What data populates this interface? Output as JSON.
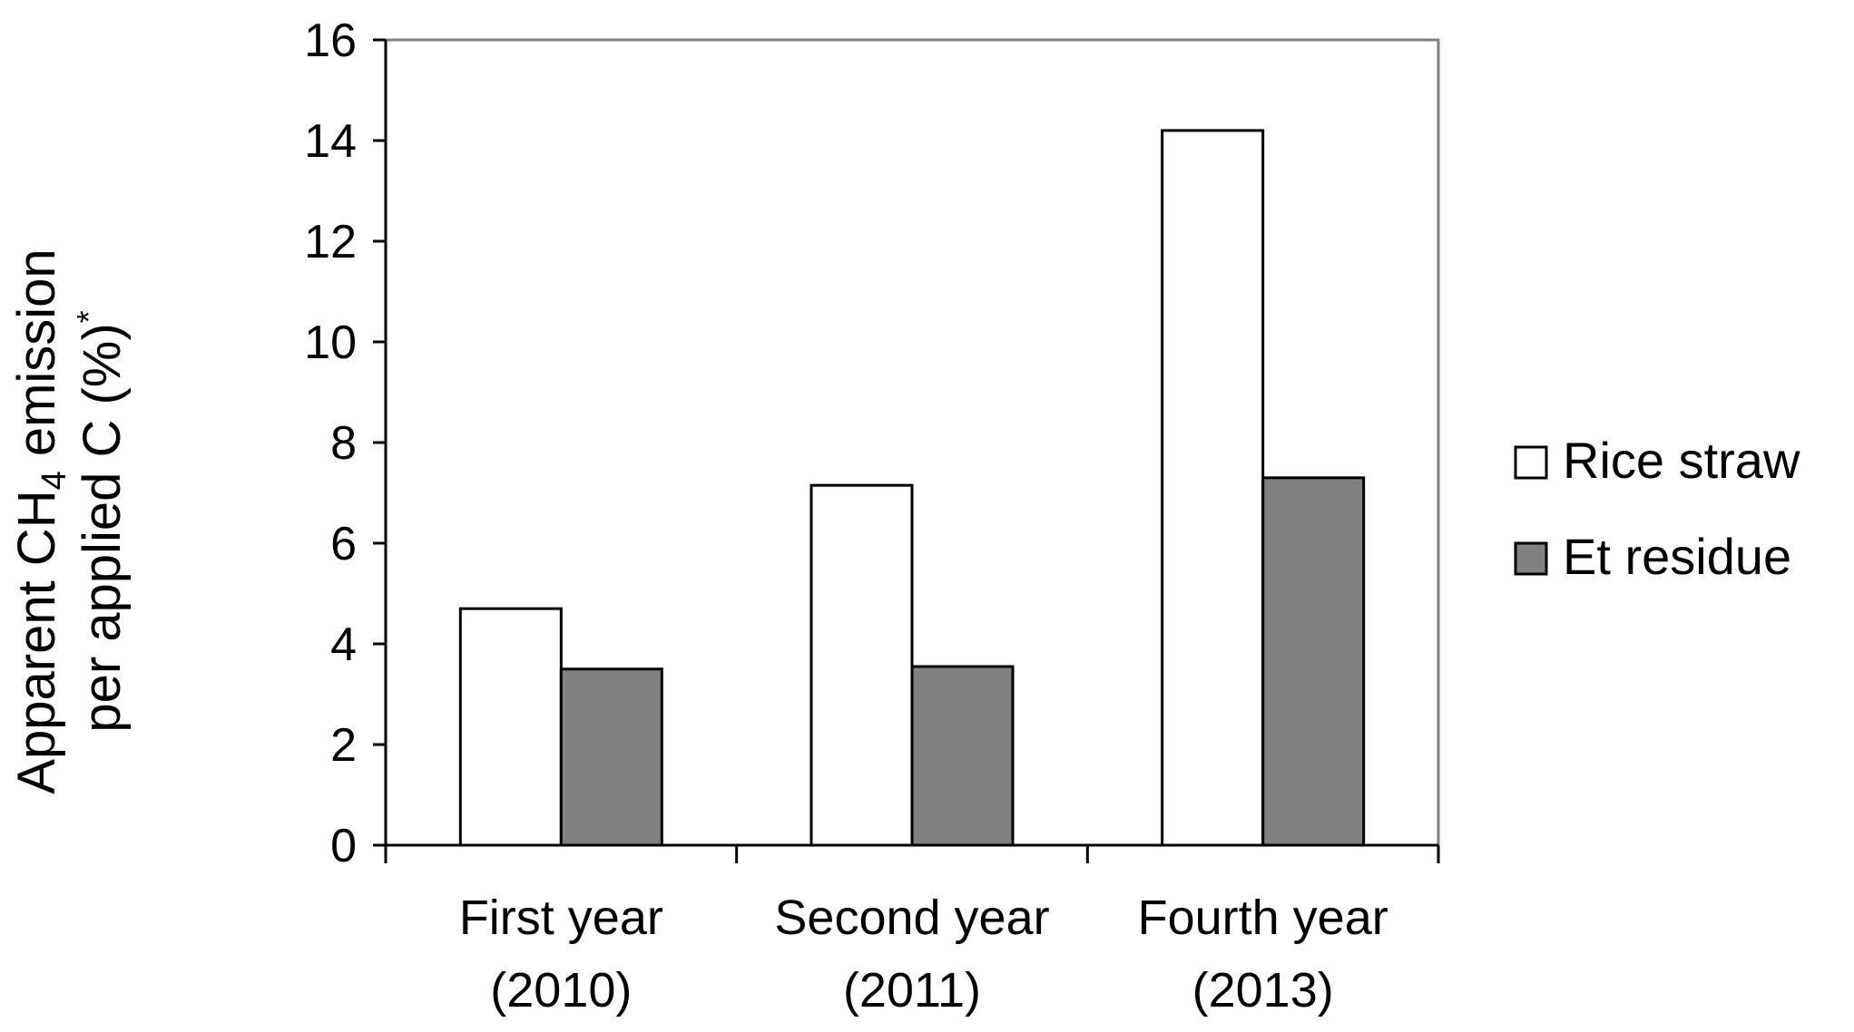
{
  "chart_data": {
    "type": "bar",
    "categories": [
      [
        "First year",
        "(2010)"
      ],
      [
        "Second year",
        "(2011)"
      ],
      [
        "Fourth year",
        "(2013)"
      ]
    ],
    "series": [
      {
        "name": "Rice straw",
        "values": [
          4.7,
          7.15,
          14.2
        ],
        "color": "#ffffff"
      },
      {
        "name": "Et residue",
        "values": [
          3.5,
          3.55,
          7.3
        ],
        "color": "#808080"
      }
    ],
    "ylabel_line1_prefix": "Apparent CH",
    "ylabel_line1_sub": "4",
    "ylabel_line1_suffix": " emission",
    "ylabel_line2": "per applied C (%)",
    "ylabel_line2_sup": "*",
    "ylim": [
      0,
      16
    ],
    "yticks": [
      0,
      2,
      4,
      6,
      8,
      10,
      12,
      14,
      16
    ],
    "legend_position": "right",
    "grid": false,
    "colors": {
      "bar_outline": "#000000",
      "axis": "#000000",
      "frame": "#808080"
    }
  }
}
